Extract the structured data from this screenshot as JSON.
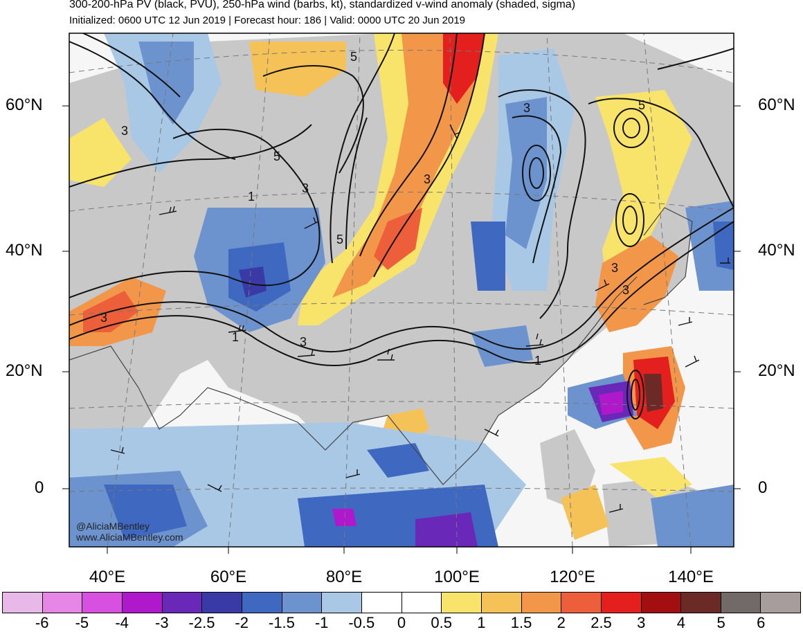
{
  "header": {
    "title": "300-200-hPa PV (black, PVU), 250-hPa wind (barbs, kt), standardized v-wind anomaly (shaded, sigma)",
    "subtitle": "Initialized: 0600 UTC 12 Jun 2019 | Forecast hour: 186 | Valid: 0000 UTC 20 Jun 2019"
  },
  "axes": {
    "lat_labels_left": [
      "60°N",
      "40°N",
      "20°N",
      "0"
    ],
    "lat_labels_right": [
      "60°N",
      "40°N",
      "20°N",
      "0"
    ],
    "lon_labels": [
      "40°E",
      "60°E",
      "80°E",
      "100°E",
      "120°E",
      "140°E"
    ]
  },
  "contour_labels": [
    "5",
    "3",
    "1",
    "3",
    "5",
    "3",
    "5",
    "1",
    "3",
    "3",
    "3",
    "1",
    "5",
    "3",
    "3"
  ],
  "credit": {
    "handle": "@AliciaMBentley",
    "site": "www.AliciaMBentley.com"
  },
  "colorbar": {
    "labels": [
      "-6",
      "-5",
      "-4",
      "-3",
      "-2.5",
      "-2",
      "-1.5",
      "-1",
      "-0.5",
      "0",
      "0.5",
      "1",
      "1.5",
      "2",
      "2.5",
      "3",
      "4",
      "5",
      "6"
    ],
    "colors": [
      "#e8b8e8",
      "#e687e8",
      "#d850e0",
      "#b018cc",
      "#6a28b8",
      "#3a3aa6",
      "#3f69c0",
      "#6d93cf",
      "#a8c8e6",
      "#ffffff",
      "#ffffff",
      "#f9e46b",
      "#f5c257",
      "#f2964a",
      "#ec5f3a",
      "#e3201e",
      "#a30f10",
      "#6c2a27",
      "#726a69",
      "#a69d9c"
    ]
  }
}
